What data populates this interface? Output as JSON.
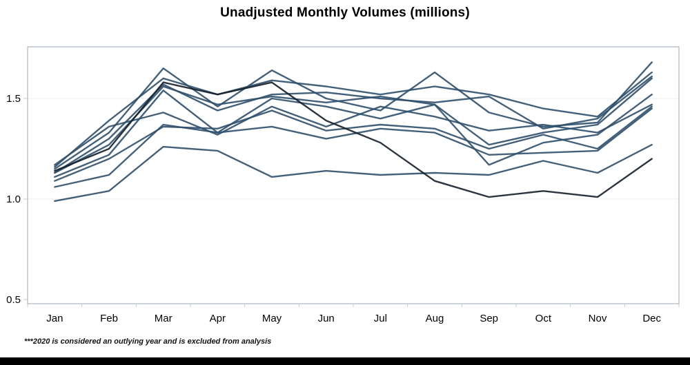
{
  "header": {
    "title": "Unadjusted Monthly Volumes (millions)"
  },
  "footnote": {
    "text": "***2020 is considered an outlying year and is excluded from analysis"
  },
  "colors": {
    "line": "#2f506c",
    "highlight_line": "#141f2a",
    "axis_border": "#a9b3bd",
    "gridline": "#ececec",
    "tick": "#c3cad1",
    "text": "#000000",
    "background": "#ffffff",
    "bottom_bar": "#000000"
  },
  "chart_data": {
    "type": "line",
    "title": "Unadjusted Monthly Volumes (millions)",
    "xlabel": "",
    "ylabel": "",
    "legend": "none",
    "grid": "horizontal-light",
    "categories": [
      "Jan",
      "Feb",
      "Mar",
      "Apr",
      "May",
      "Jun",
      "Jul",
      "Aug",
      "Sep",
      "Oct",
      "Nov",
      "Dec"
    ],
    "y_tick_labels": [
      "0.5",
      "1.0",
      "1.5"
    ],
    "y_tick_values": [
      0.5,
      1.0,
      1.5
    ],
    "grid_values": [
      1.0,
      1.5
    ],
    "ylim": [
      0.48,
      1.76
    ],
    "annotation": "***2020 is considered an outlying year and is excluded from analysis",
    "series": [
      {
        "name": "line-1",
        "color": "#2f506c",
        "values": [
          1.15,
          1.33,
          1.65,
          1.46,
          1.64,
          1.5,
          1.44,
          1.63,
          1.43,
          1.36,
          1.38,
          1.68
        ]
      },
      {
        "name": "line-2",
        "color": "#2f506c",
        "values": [
          1.16,
          1.39,
          1.6,
          1.52,
          1.59,
          1.56,
          1.52,
          1.56,
          1.52,
          1.45,
          1.41,
          1.63
        ]
      },
      {
        "name": "line-3",
        "color": "#2f506c",
        "values": [
          1.13,
          1.3,
          1.57,
          1.44,
          1.52,
          1.53,
          1.5,
          1.48,
          1.51,
          1.35,
          1.4,
          1.61
        ]
      },
      {
        "name": "line-4",
        "color": "#2f506c",
        "values": [
          1.13,
          1.27,
          1.56,
          1.47,
          1.51,
          1.48,
          1.51,
          1.47,
          1.27,
          1.33,
          1.37,
          1.6
        ]
      },
      {
        "name": "line-5",
        "color": "#2f506c",
        "values": [
          1.11,
          1.22,
          1.54,
          1.33,
          1.5,
          1.46,
          1.4,
          1.47,
          1.17,
          1.28,
          1.32,
          1.52
        ]
      },
      {
        "name": "line-6",
        "color": "#2f506c",
        "values": [
          1.17,
          1.36,
          1.43,
          1.32,
          1.46,
          1.36,
          1.46,
          1.41,
          1.34,
          1.37,
          1.33,
          1.47
        ]
      },
      {
        "name": "line-7",
        "color": "#2f506c",
        "values": [
          1.09,
          1.2,
          1.36,
          1.35,
          1.44,
          1.34,
          1.37,
          1.35,
          1.25,
          1.32,
          1.25,
          1.46
        ]
      },
      {
        "name": "line-8",
        "color": "#2f506c",
        "values": [
          1.06,
          1.12,
          1.37,
          1.33,
          1.36,
          1.3,
          1.35,
          1.33,
          1.22,
          1.23,
          1.24,
          1.45
        ]
      },
      {
        "name": "line-9",
        "color": "#2f506c",
        "values": [
          0.99,
          1.04,
          1.26,
          1.24,
          1.11,
          1.14,
          1.12,
          1.13,
          1.12,
          1.19,
          1.13,
          1.27
        ]
      },
      {
        "name": "line-10-dark",
        "color": "#141f2a",
        "values": [
          1.14,
          1.25,
          1.58,
          1.52,
          1.58,
          1.39,
          1.28,
          1.09,
          1.01,
          1.04,
          1.01,
          1.2
        ]
      }
    ]
  }
}
